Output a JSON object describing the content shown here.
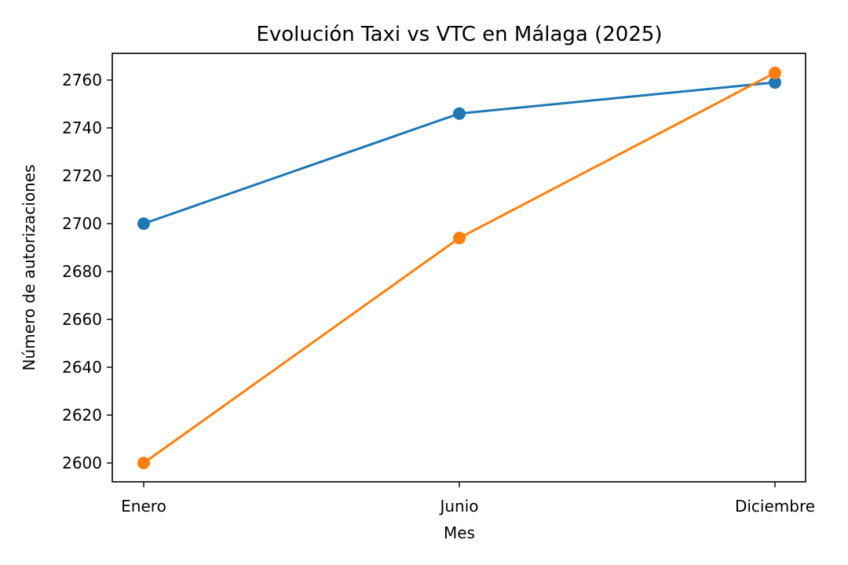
{
  "chart_data": {
    "type": "line",
    "title": "Evolución Taxi vs VTC en Málaga (2025)",
    "xlabel": "Mes",
    "ylabel": "Número de autorizaciones",
    "categories": [
      "Enero",
      "Junio",
      "Diciembre"
    ],
    "series": [
      {
        "name": "Taxi",
        "color": "#1f77b4",
        "values": [
          2700,
          2746,
          2759
        ]
      },
      {
        "name": "VTC",
        "color": "#ff7f0e",
        "values": [
          2600,
          2694,
          2763
        ]
      }
    ],
    "yticks": [
      2600,
      2620,
      2640,
      2660,
      2680,
      2700,
      2720,
      2740,
      2760
    ],
    "ylim": [
      2592,
      2771
    ],
    "grid": false,
    "legend": null,
    "markers": "circle"
  }
}
